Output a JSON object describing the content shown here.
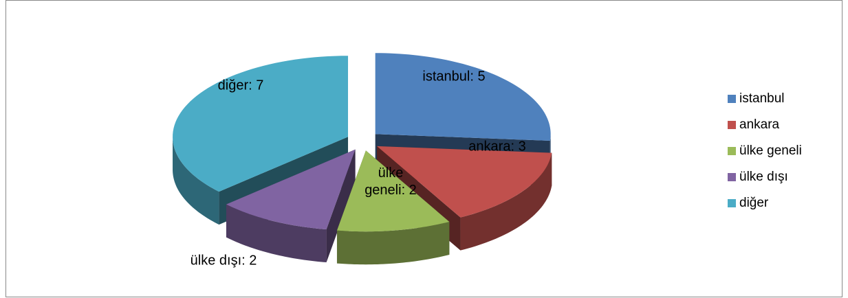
{
  "chart_data": {
    "type": "pie3d",
    "categories": [
      "istanbul",
      "ankara",
      "ülke geneli",
      "ülke dışı",
      "diğer"
    ],
    "values": [
      5,
      3,
      2,
      2,
      7
    ],
    "value_labels": [
      "istanbul: 5",
      "ankara: 3",
      "ülke geneli: 2",
      "ülke dışı: 2",
      "diğer: 7"
    ],
    "colors": [
      "#4f81bd",
      "#c0504d",
      "#9bbb59",
      "#8064a2",
      "#4bacc6"
    ],
    "legend": "right"
  }
}
